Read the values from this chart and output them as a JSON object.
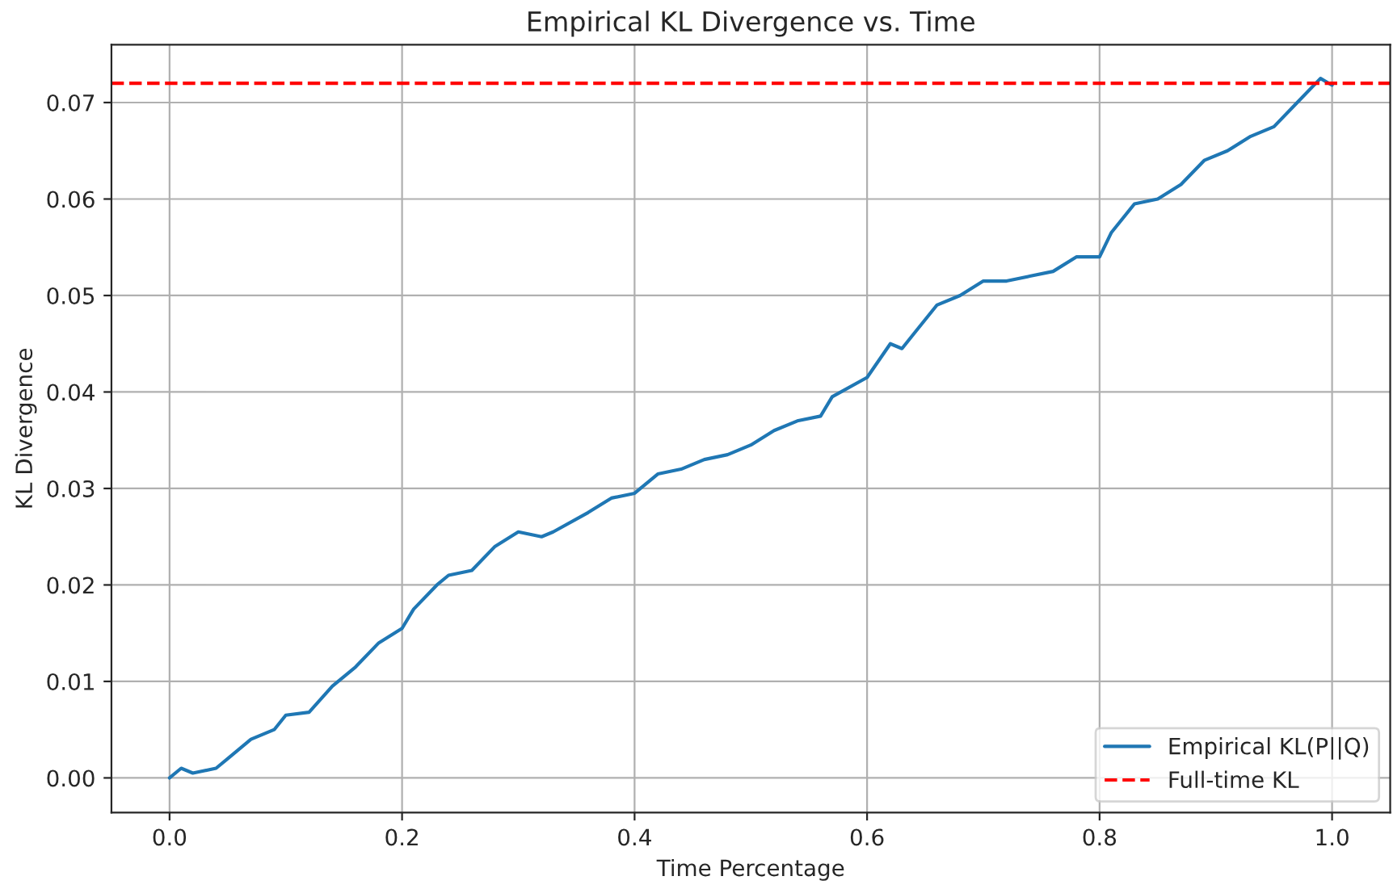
{
  "chart_data": {
    "type": "line",
    "title": "Empirical KL Divergence vs. Time",
    "xlabel": "Time Percentage",
    "ylabel": "KL Divergence",
    "x": [
      0.0,
      0.01,
      0.02,
      0.04,
      0.05,
      0.07,
      0.09,
      0.1,
      0.12,
      0.14,
      0.16,
      0.18,
      0.2,
      0.21,
      0.23,
      0.24,
      0.26,
      0.28,
      0.3,
      0.32,
      0.33,
      0.36,
      0.38,
      0.4,
      0.42,
      0.44,
      0.46,
      0.48,
      0.5,
      0.52,
      0.54,
      0.56,
      0.57,
      0.6,
      0.62,
      0.63,
      0.64,
      0.66,
      0.68,
      0.7,
      0.72,
      0.74,
      0.76,
      0.78,
      0.8,
      0.81,
      0.83,
      0.85,
      0.87,
      0.89,
      0.91,
      0.93,
      0.95,
      0.97,
      0.99,
      1.0
    ],
    "series": [
      {
        "name": "Empirical KL(P||Q)",
        "color": "#1f77b4",
        "values": [
          0.0,
          0.001,
          0.0005,
          0.001,
          0.002,
          0.004,
          0.005,
          0.0065,
          0.0068,
          0.0095,
          0.0115,
          0.014,
          0.0155,
          0.0175,
          0.02,
          0.021,
          0.0215,
          0.024,
          0.0255,
          0.025,
          0.0255,
          0.0275,
          0.029,
          0.0295,
          0.0315,
          0.032,
          0.033,
          0.0335,
          0.0345,
          0.036,
          0.037,
          0.0375,
          0.0395,
          0.0415,
          0.045,
          0.0445,
          0.046,
          0.049,
          0.05,
          0.0515,
          0.0515,
          0.052,
          0.0525,
          0.054,
          0.054,
          0.0565,
          0.0595,
          0.06,
          0.0615,
          0.064,
          0.065,
          0.0665,
          0.0675,
          0.07,
          0.0725,
          0.0718
        ]
      }
    ],
    "ref_lines": [
      {
        "axis": "y",
        "value": 0.072,
        "label": "Full-time KL",
        "color": "#ff0000",
        "line_style": "dashed"
      }
    ],
    "xlim": [
      -0.05,
      1.05
    ],
    "ylim": [
      -0.0036,
      0.076
    ],
    "xticks": [
      {
        "value": 0,
        "label": "0.0"
      },
      {
        "value": 0.2,
        "label": "0.2"
      },
      {
        "value": 0.4,
        "label": "0.4"
      },
      {
        "value": 0.6,
        "label": "0.6"
      },
      {
        "value": 0.8,
        "label": "0.8"
      },
      {
        "value": 1,
        "label": "1.0"
      }
    ],
    "yticks": [
      {
        "value": 0,
        "label": "0.00"
      },
      {
        "value": 0.01,
        "label": "0.01"
      },
      {
        "value": 0.02,
        "label": "0.02"
      },
      {
        "value": 0.03,
        "label": "0.03"
      },
      {
        "value": 0.04,
        "label": "0.04"
      },
      {
        "value": 0.05,
        "label": "0.05"
      },
      {
        "value": 0.06,
        "label": "0.06"
      },
      {
        "value": 0.07,
        "label": "0.07"
      }
    ],
    "grid": true,
    "legend": "lower right"
  }
}
